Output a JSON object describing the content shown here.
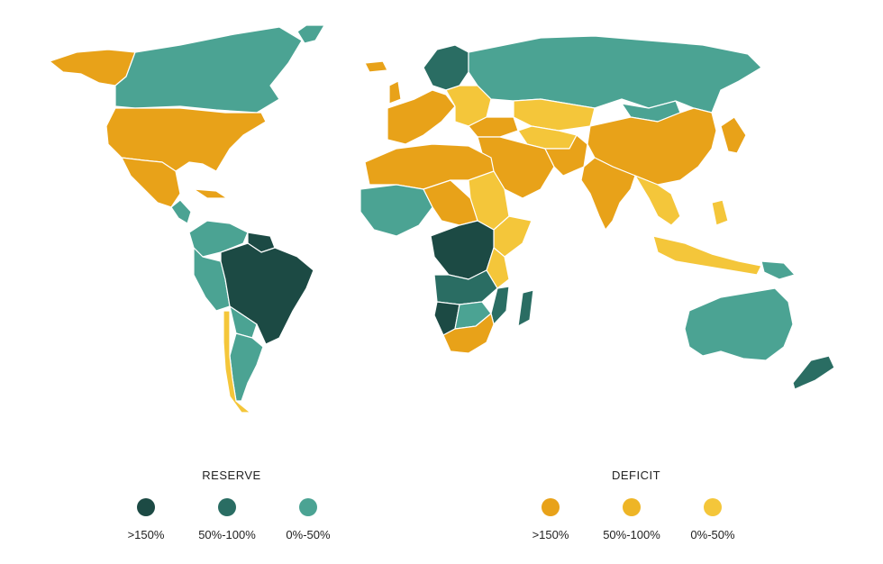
{
  "colors": {
    "reserve_high": "#1c4a44",
    "reserve_mid": "#2a6d63",
    "reserve_low": "#4ba393",
    "deficit_high": "#e8a219",
    "deficit_mid": "#eeb526",
    "deficit_low": "#f4c63a"
  },
  "legend": {
    "reserve": {
      "title": "RESERVE",
      "items": [
        {
          "label": ">150%",
          "color": "#1c4a44"
        },
        {
          "label": "50%-100%",
          "color": "#2a6d63"
        },
        {
          "label": "0%-50%",
          "color": "#4ba393"
        }
      ]
    },
    "deficit": {
      "title": "DEFICIT",
      "items": [
        {
          "label": ">150%",
          "color": "#e8a219"
        },
        {
          "label": "50%-100%",
          "color": "#eeb526"
        },
        {
          "label": "0%-50%",
          "color": "#f4c63a"
        }
      ]
    }
  }
}
